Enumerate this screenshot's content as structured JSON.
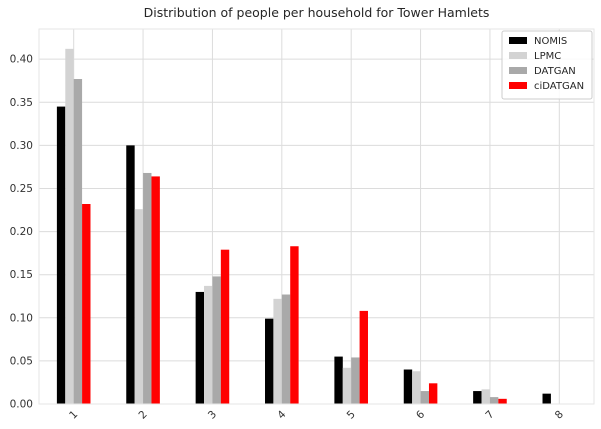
{
  "chart_data": {
    "type": "bar",
    "title": "Distribution of people per household for Tower Hamlets",
    "xlabel": "",
    "ylabel": "",
    "categories": [
      "1",
      "2",
      "3",
      "4",
      "5",
      "6",
      "7",
      "8"
    ],
    "ylim": [
      0,
      0.435
    ],
    "yticks": [
      "0.00",
      "0.05",
      "0.10",
      "0.15",
      "0.20",
      "0.25",
      "0.30",
      "0.35",
      "0.40"
    ],
    "grid": true,
    "legend_position": "top-right",
    "series": [
      {
        "name": "NOMIS",
        "color": "#000000",
        "values": [
          0.345,
          0.3,
          0.13,
          0.099,
          0.055,
          0.04,
          0.015,
          0.012
        ]
      },
      {
        "name": "LPMC",
        "color": "#d3d3d3",
        "values": [
          0.412,
          0.226,
          0.137,
          0.122,
          0.042,
          0.038,
          0.017,
          0.0
        ]
      },
      {
        "name": "DATGAN",
        "color": "#a9a9a9",
        "values": [
          0.377,
          0.268,
          0.148,
          0.127,
          0.054,
          0.015,
          0.008,
          0.0
        ]
      },
      {
        "name": "ciDATGAN",
        "color": "#ff0000",
        "values": [
          0.232,
          0.264,
          0.179,
          0.183,
          0.108,
          0.024,
          0.006,
          0.0
        ]
      }
    ]
  }
}
